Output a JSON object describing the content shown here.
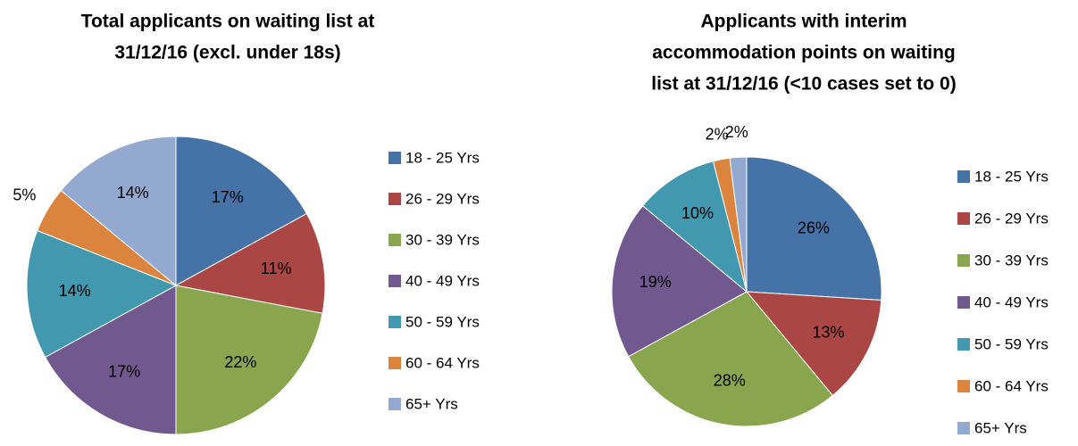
{
  "chart_data": [
    {
      "type": "pie",
      "title": [
        "Total applicants on waiting list at",
        "31/12/16 (excl. under 18s)"
      ],
      "categories": [
        "18 - 25 Yrs",
        "26 - 29 Yrs",
        "30 - 39 Yrs",
        "40 - 49 Yrs",
        "50 - 59 Yrs",
        "60 - 64 Yrs",
        "65+ Yrs"
      ],
      "values": [
        17,
        11,
        22,
        17,
        14,
        5,
        14
      ],
      "value_labels": [
        "17%",
        "11%",
        "22%",
        "17%",
        "14%",
        "5%",
        "14%"
      ],
      "colors": [
        "#4572a7",
        "#aa4643",
        "#89a54e",
        "#71588f",
        "#4198af",
        "#db843d",
        "#93a9cf"
      ],
      "legend": "right"
    },
    {
      "type": "pie",
      "title": [
        "Applicants with interim",
        "accommodation points on waiting",
        "list at 31/12/16 (<10 cases set to 0)"
      ],
      "categories": [
        "18 - 25 Yrs",
        "26 - 29 Yrs",
        "30 - 39 Yrs",
        "40 - 49 Yrs",
        "50 - 59 Yrs",
        "60 - 64 Yrs",
        "65+ Yrs"
      ],
      "values": [
        26,
        13,
        28,
        19,
        10,
        2,
        2
      ],
      "value_labels": [
        "26%",
        "13%",
        "28%",
        "19%",
        "10%",
        "2%",
        "2%"
      ],
      "colors": [
        "#4572a7",
        "#aa4643",
        "#89a54e",
        "#71588f",
        "#4198af",
        "#db843d",
        "#93a9cf"
      ],
      "legend": "right"
    }
  ]
}
